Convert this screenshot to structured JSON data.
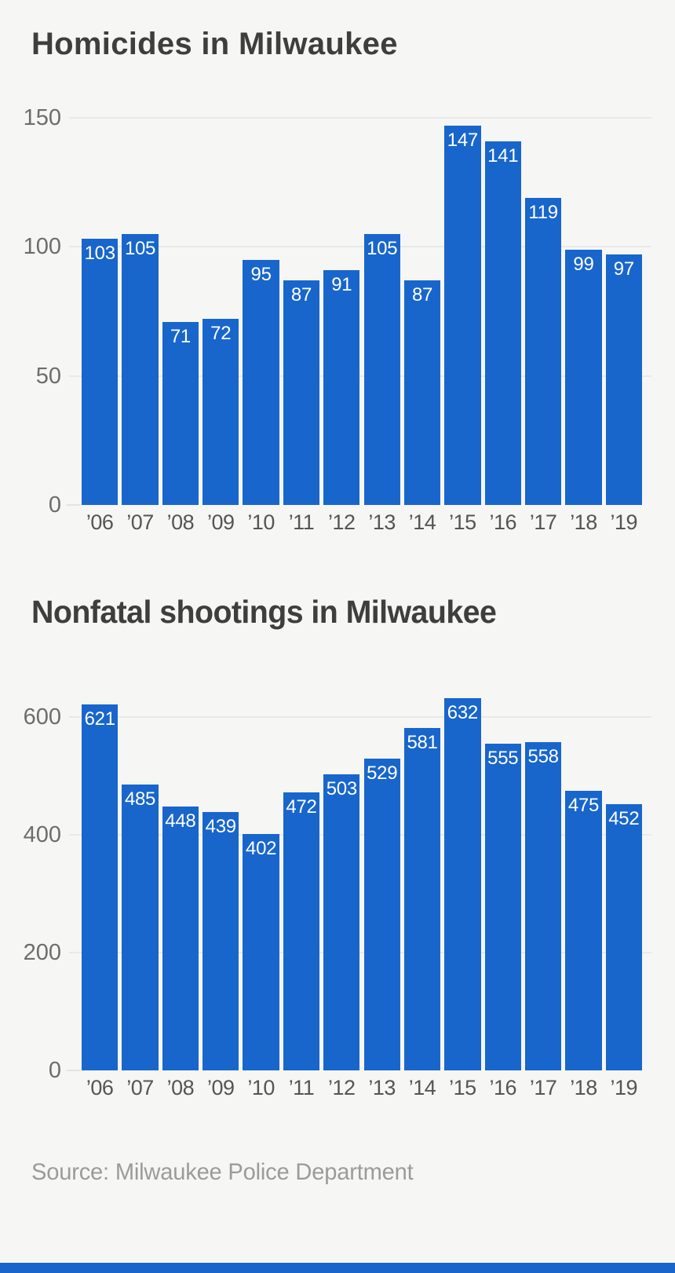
{
  "page": {
    "background": "#f6f6f4",
    "accent_blue": "#1866cb"
  },
  "chart_data": [
    {
      "type": "bar",
      "title": "Homicides in Milwaukee",
      "categories": [
        "’06",
        "’07",
        "’08",
        "’09",
        "’10",
        "’11",
        "’12",
        "’13",
        "’14",
        "’15",
        "’16",
        "’17",
        "’18",
        "’19"
      ],
      "values": [
        103,
        105,
        71,
        72,
        95,
        87,
        91,
        105,
        87,
        147,
        141,
        119,
        99,
        97
      ],
      "xlabel": "",
      "ylabel": "",
      "ylim": [
        0,
        150
      ],
      "yticks": [
        0,
        50,
        100,
        150
      ],
      "grid": true,
      "legend": "none",
      "bar_color": "#1866cb",
      "value_label_color": "#ffffff",
      "value_label_position": "inside-top",
      "axis_label_color": "#6d6d6d"
    },
    {
      "type": "bar",
      "title": "Nonfatal shootings in Milwaukee",
      "categories": [
        "’06",
        "’07",
        "’08",
        "’09",
        "’10",
        "’11",
        "’12",
        "’13",
        "’14",
        "’15",
        "’16",
        "’17",
        "’18",
        "’19"
      ],
      "values": [
        621,
        485,
        448,
        439,
        402,
        472,
        503,
        529,
        581,
        632,
        555,
        558,
        475,
        452
      ],
      "xlabel": "",
      "ylabel": "",
      "ylim": [
        0,
        650
      ],
      "yticks": [
        0,
        200,
        400,
        600
      ],
      "grid": true,
      "legend": "none",
      "bar_color": "#1866cb",
      "value_label_color": "#ffffff",
      "value_label_position": "inside-top",
      "axis_label_color": "#6d6d6d"
    }
  ],
  "source": {
    "label": "Source: Milwaukee Police Department"
  },
  "footer": {
    "bar_color": "#1866cb"
  }
}
